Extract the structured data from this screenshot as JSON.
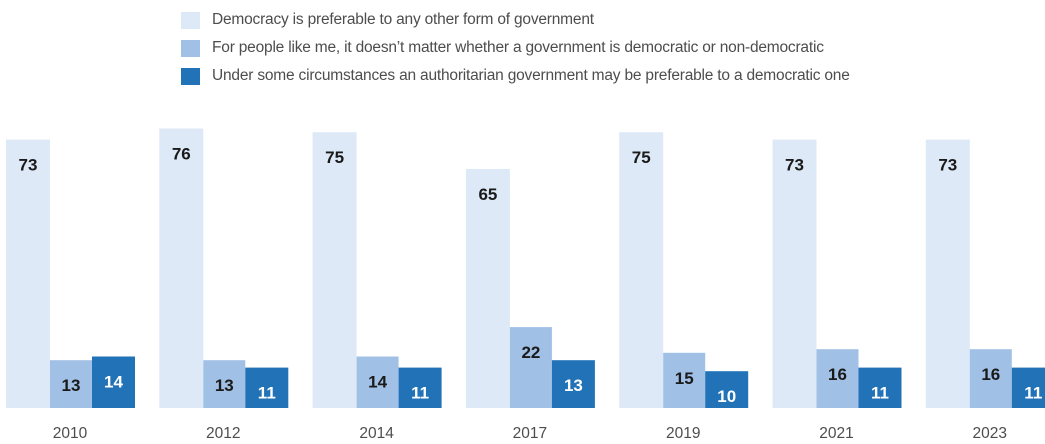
{
  "chart_data": {
    "type": "bar",
    "categories": [
      "2010",
      "2012",
      "2014",
      "2017",
      "2019",
      "2021",
      "2023"
    ],
    "series": [
      {
        "name": "Democracy is preferable to any other form of government",
        "color": "#dde9f6",
        "values": [
          73,
          76,
          75,
          65,
          75,
          73,
          73
        ]
      },
      {
        "name": "For people like me, it doesn’t matter whether a government is democratic or non-democratic",
        "color": "#a1c0e5",
        "values": [
          13,
          13,
          14,
          22,
          15,
          16,
          16
        ]
      },
      {
        "name": "Under some circumstances an authoritarian government may be preferable to a democratic one",
        "color": "#2272b8",
        "values": [
          14,
          11,
          11,
          13,
          10,
          11,
          11
        ]
      }
    ],
    "title": "",
    "xlabel": "",
    "ylabel": "",
    "ylim": [
      0,
      80
    ],
    "grid": false,
    "legend_position": "top",
    "label_color_dark": "#1a1a1a",
    "label_color_light": "#ffffff"
  }
}
